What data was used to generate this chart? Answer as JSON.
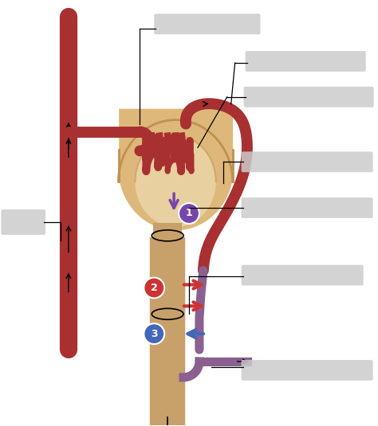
{
  "bg_color": "#ffffff",
  "label_box_color": "#cccccc",
  "artery_color": "#A83030",
  "tubule_color": "#C8A06A",
  "tubule_edge_color": "#B8906A",
  "peritubular_color": "#8B6090",
  "arrow_red_color": "#CC3333",
  "arrow_blue_color": "#4466BB",
  "purple_arrow_color": "#7744AA",
  "bowman_fill": "#DEB87A",
  "bowman_inner": "#E8D0A0",
  "glom_color": "#A83030",
  "num1_color": "#7744AA",
  "num2_color": "#CC3333",
  "num3_color": "#4466BB"
}
